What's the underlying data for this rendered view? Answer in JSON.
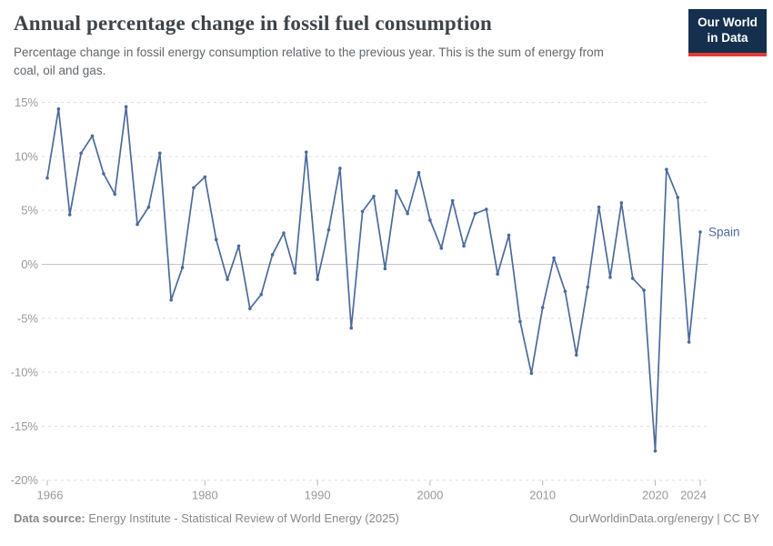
{
  "header": {
    "title": "Annual percentage change in fossil fuel consumption",
    "subtitle_lines": [
      "Percentage change in fossil energy consumption relative to the previous year. This is the sum of energy from",
      "coal, oil and gas."
    ],
    "logo": {
      "line1": "Our World",
      "line2": "in Data"
    }
  },
  "chart_data": {
    "type": "line",
    "title": "Annual percentage change in fossil fuel consumption",
    "x": [
      1966,
      1967,
      1968,
      1969,
      1970,
      1971,
      1972,
      1973,
      1974,
      1975,
      1976,
      1977,
      1978,
      1979,
      1980,
      1981,
      1982,
      1983,
      1984,
      1985,
      1986,
      1987,
      1988,
      1989,
      1990,
      1991,
      1992,
      1993,
      1994,
      1995,
      1996,
      1997,
      1998,
      1999,
      2000,
      2001,
      2002,
      2003,
      2004,
      2005,
      2006,
      2007,
      2008,
      2009,
      2010,
      2011,
      2012,
      2013,
      2014,
      2015,
      2016,
      2017,
      2018,
      2019,
      2020,
      2021,
      2022,
      2023,
      2024
    ],
    "series": [
      {
        "name": "Spain",
        "color": "#4c6a9c",
        "values": [
          8.0,
          14.4,
          4.6,
          10.3,
          11.9,
          8.4,
          6.5,
          14.6,
          3.7,
          5.3,
          10.3,
          -3.3,
          -0.3,
          7.1,
          8.1,
          2.3,
          -1.4,
          1.7,
          -4.1,
          -2.8,
          0.9,
          2.9,
          -0.8,
          10.4,
          -1.4,
          3.2,
          8.9,
          -5.9,
          4.9,
          6.3,
          -0.4,
          6.8,
          4.7,
          8.5,
          4.1,
          1.5,
          5.9,
          1.7,
          4.7,
          5.1,
          -0.9,
          2.7,
          -5.3,
          -10.1,
          -4.0,
          0.6,
          -2.5,
          -8.4,
          -2.1,
          5.3,
          -1.2,
          5.7,
          -1.3,
          -2.4,
          -17.3,
          8.8,
          6.2,
          -7.2,
          3.0
        ]
      }
    ],
    "end_label": "Spain",
    "xlim": [
      1966,
      2024
    ],
    "ylim": [
      -20,
      15
    ],
    "x_ticks": [
      1966,
      1980,
      1990,
      2000,
      2010,
      2020,
      2024
    ],
    "y_ticks": [
      15,
      10,
      5,
      0,
      -5,
      -10,
      -15,
      -20
    ],
    "y_tick_suffix": "%",
    "grid": "horizontal-dashed",
    "legend_position": "end-of-line-label",
    "marker": "point"
  },
  "footer": {
    "source_label": "Data source:",
    "source_text": " Energy Institute - Statistical Review of World Energy (2025)",
    "credit_text": "OurWorldinData.org/energy | CC BY"
  },
  "colors": {
    "line": "#4c6a9c",
    "grid": "#e0e0e0",
    "zero_line": "#c6c6c6",
    "axis_tick": "#b5b5b5",
    "tick_label": "#999999",
    "title": "#3d4449",
    "subtitle": "#61676c",
    "footer": "#888888",
    "logo_bg": "#15304e",
    "logo_red": "#e23d33"
  }
}
